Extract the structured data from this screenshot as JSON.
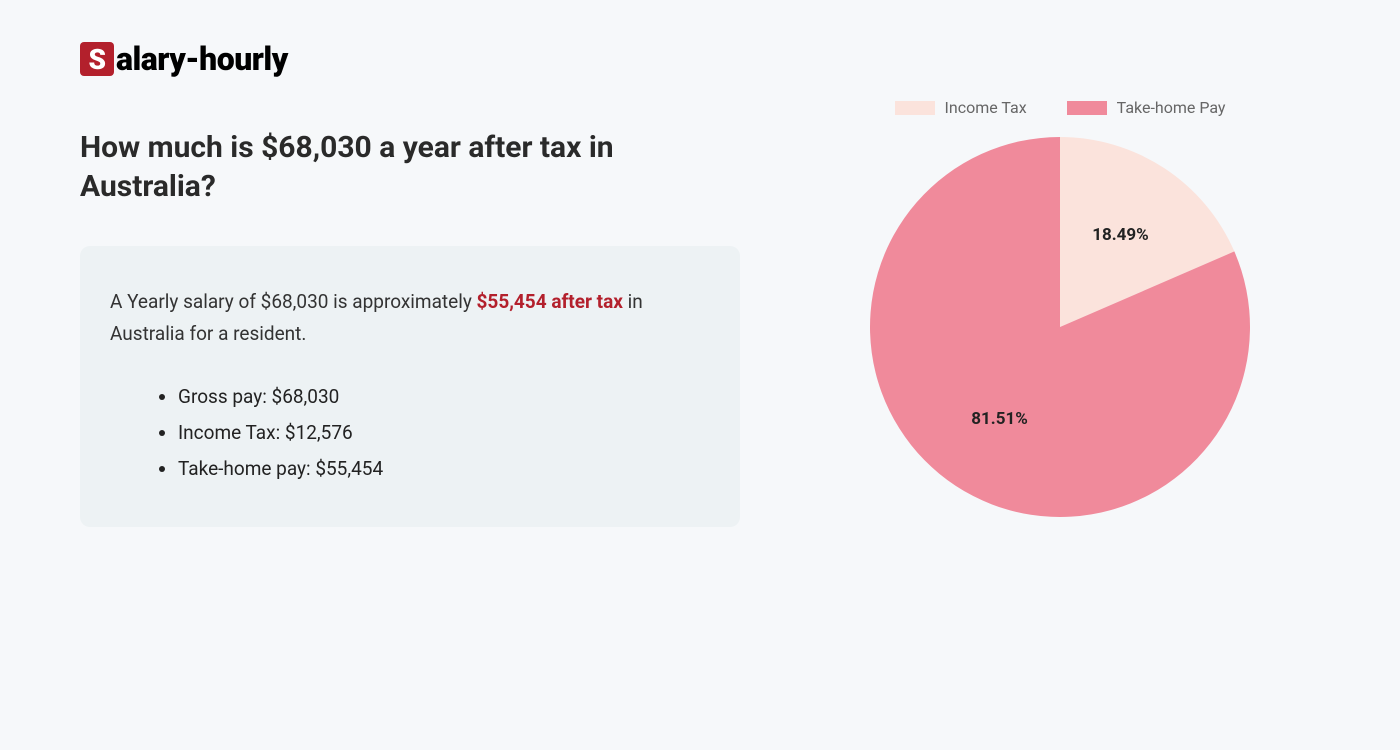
{
  "logo": {
    "initial": "S",
    "rest": "alary-hourly"
  },
  "title": "How much is $68,030 a year after tax in Australia?",
  "summary": {
    "text_before": "A Yearly salary of $68,030 is approximately ",
    "highlight": "$55,454 after tax",
    "text_after": " in Australia for a resident.",
    "bullets": [
      "Gross pay: $68,030",
      "Income Tax: $12,576",
      "Take-home pay: $55,454"
    ]
  },
  "chart": {
    "type": "pie",
    "background_color": "#f6f8fa",
    "summary_box_color": "#edf2f4",
    "highlight_color": "#b3202c",
    "radius": 190,
    "slices": [
      {
        "label": "Income Tax",
        "value": 18.49,
        "display": "18.49%",
        "color": "#fbe3dc"
      },
      {
        "label": "Take-home Pay",
        "value": 81.51,
        "display": "81.51%",
        "color": "#f08a9b"
      }
    ],
    "legend_text_color": "#666666",
    "label_fontsize": 17,
    "label_font_weight": 700,
    "label_color": "#222222",
    "start_angle_deg": 0
  }
}
